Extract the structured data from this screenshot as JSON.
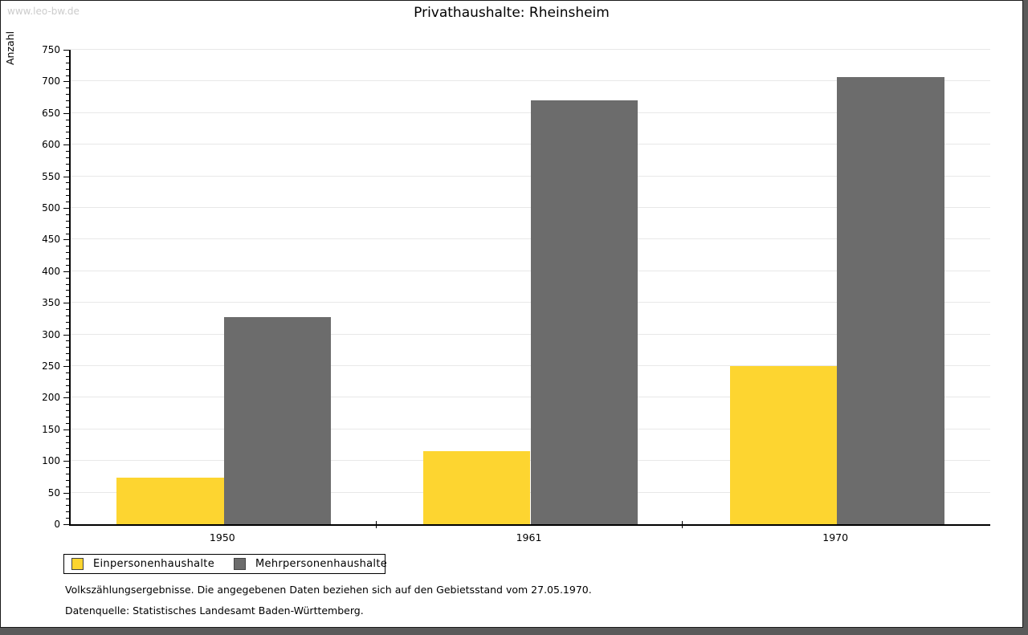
{
  "watermark": "www.leo-bw.de",
  "title": "Privathaushalte: Rheinsheim",
  "legend": {
    "items": [
      {
        "label": "Einpersonenhaushalte",
        "color": "#FDD530"
      },
      {
        "label": "Mehrpersonenhaushalte",
        "color": "#6C6C6C"
      }
    ]
  },
  "footer": {
    "line1": "Volkszählungsergebnisse. Die angegebenen Daten beziehen sich auf den Gebietsstand vom 27.05.1970.",
    "line2": "Datenquelle: Statistisches Landesamt Baden-Württemberg."
  },
  "chart_data": {
    "type": "bar",
    "title": "Privathaushalte: Rheinsheim",
    "categories": [
      "1950",
      "1961",
      "1970"
    ],
    "series": [
      {
        "name": "Einpersonenhaushalte",
        "color": "#FDD530",
        "values": [
          73,
          116,
          250
        ]
      },
      {
        "name": "Mehrpersonenhaushalte",
        "color": "#6C6C6C",
        "values": [
          328,
          670,
          707
        ]
      }
    ],
    "xlabel": "",
    "ylabel": "Anzahl",
    "ylim": [
      0,
      750
    ],
    "ytick_step": 50,
    "yminor_step": 10,
    "grid": true,
    "gridline_color": "#e8e8e8",
    "legend_position": "bottom-left"
  }
}
